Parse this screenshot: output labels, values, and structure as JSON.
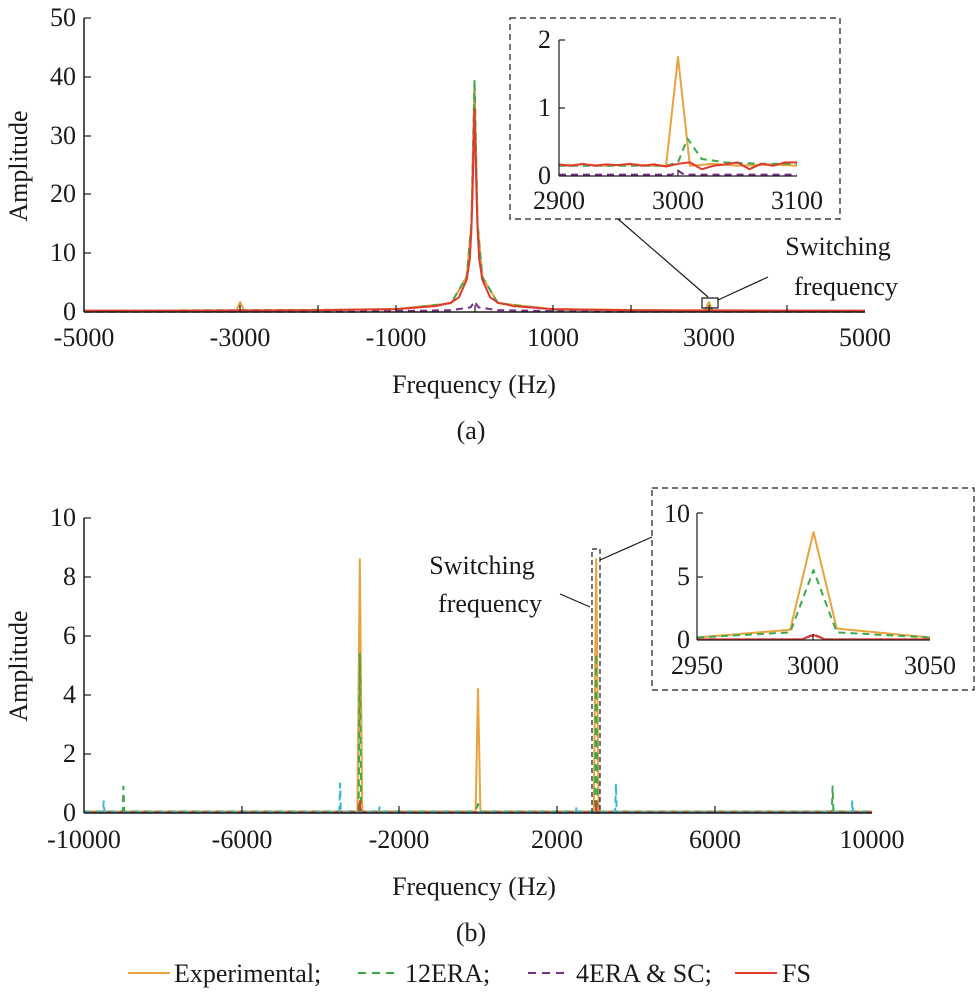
{
  "chart_data": [
    {
      "type": "line",
      "caption": "(a)",
      "xlabel": "Frequency (Hz)",
      "ylabel": "Amplitude",
      "xlim": [
        -5000,
        5000
      ],
      "ylim": [
        0,
        50
      ],
      "xticks": [
        "-5000",
        "-3000",
        "-1000",
        "1000",
        "3000",
        "5000"
      ],
      "yticks": [
        "0",
        "10",
        "20",
        "30",
        "40",
        "50"
      ],
      "grid": false,
      "annotation": "Switching frequency",
      "series": [
        {
          "name": "Experimental",
          "color": "#E8A33D",
          "dash": "solid",
          "points": [
            [
              -5000,
              0.2
            ],
            [
              -3050,
              0.2
            ],
            [
              -3000,
              1.7
            ],
            [
              -2950,
              0.2
            ],
            [
              -1000,
              0.5
            ],
            [
              -300,
              1.5
            ],
            [
              -100,
              6
            ],
            [
              -40,
              15
            ],
            [
              -15,
              30
            ],
            [
              0,
              39
            ],
            [
              15,
              30
            ],
            [
              40,
              15
            ],
            [
              100,
              6
            ],
            [
              300,
              1.5
            ],
            [
              1000,
              0.5
            ],
            [
              2950,
              0.2
            ],
            [
              3000,
              1.7
            ],
            [
              3050,
              0.2
            ],
            [
              5000,
              0.2
            ]
          ]
        },
        {
          "name": "12ERA",
          "color": "#3DAA4A",
          "dash": "dashed",
          "points": [
            [
              -5000,
              0.2
            ],
            [
              -1000,
              0.4
            ],
            [
              -300,
              1.5
            ],
            [
              -100,
              6
            ],
            [
              -40,
              15
            ],
            [
              -15,
              30
            ],
            [
              0,
              39.5
            ],
            [
              15,
              30
            ],
            [
              40,
              15
            ],
            [
              100,
              6
            ],
            [
              300,
              1.5
            ],
            [
              1000,
              0.4
            ],
            [
              2990,
              0.2
            ],
            [
              3010,
              0.55
            ],
            [
              3040,
              0.2
            ],
            [
              5000,
              0.2
            ]
          ]
        },
        {
          "name": "4ERA & SC",
          "color": "#7B2D8E",
          "dash": "dashed",
          "points": [
            [
              -5000,
              0.05
            ],
            [
              -1500,
              0.05
            ],
            [
              -300,
              0.3
            ],
            [
              -50,
              0.8
            ],
            [
              0,
              1.8
            ],
            [
              50,
              0.8
            ],
            [
              300,
              0.3
            ],
            [
              1500,
              0.05
            ],
            [
              5000,
              0.05
            ]
          ]
        },
        {
          "name": "FS",
          "color": "#E03A2F",
          "dash": "solid",
          "points": [
            [
              -5000,
              0.2
            ],
            [
              -2000,
              0.3
            ],
            [
              -1000,
              0.5
            ],
            [
              -500,
              1.0
            ],
            [
              -300,
              1.6
            ],
            [
              -200,
              2.5
            ],
            [
              -100,
              5.5
            ],
            [
              -60,
              9
            ],
            [
              -40,
              14
            ],
            [
              -25,
              20
            ],
            [
              -12,
              28
            ],
            [
              0,
              34.5
            ],
            [
              12,
              28
            ],
            [
              25,
              20
            ],
            [
              40,
              14
            ],
            [
              60,
              9
            ],
            [
              100,
              5.5
            ],
            [
              200,
              2.5
            ],
            [
              300,
              1.6
            ],
            [
              500,
              1.0
            ],
            [
              1000,
              0.5
            ],
            [
              2000,
              0.3
            ],
            [
              5000,
              0.2
            ]
          ]
        }
      ],
      "inset": {
        "xlim": [
          2900,
          3100
        ],
        "ylim": [
          0,
          2
        ],
        "xticks": [
          "2900",
          "3000",
          "3100"
        ],
        "yticks": [
          "0",
          "1",
          "2"
        ],
        "series": [
          {
            "name": "Experimental",
            "color": "#E8A33D",
            "dash": "solid",
            "points": [
              [
                2900,
                0.15
              ],
              [
                2920,
                0.17
              ],
              [
                2940,
                0.15
              ],
              [
                2960,
                0.17
              ],
              [
                2980,
                0.15
              ],
              [
                2990,
                0.15
              ],
              [
                3000,
                1.75
              ],
              [
                3010,
                0.15
              ],
              [
                3030,
                0.18
              ],
              [
                3050,
                0.15
              ],
              [
                3080,
                0.17
              ],
              [
                3100,
                0.15
              ]
            ]
          },
          {
            "name": "12ERA",
            "color": "#3DAA4A",
            "dash": "dashed",
            "points": [
              [
                2900,
                0.15
              ],
              [
                2950,
                0.15
              ],
              [
                2990,
                0.15
              ],
              [
                3000,
                0.2
              ],
              [
                3008,
                0.55
              ],
              [
                3020,
                0.25
              ],
              [
                3040,
                0.2
              ],
              [
                3070,
                0.18
              ],
              [
                3100,
                0.18
              ]
            ]
          },
          {
            "name": "4ERA & SC",
            "color": "#7B2D8E",
            "dash": "dashed",
            "points": [
              [
                2900,
                0.02
              ],
              [
                2995,
                0.02
              ],
              [
                3000,
                0.08
              ],
              [
                3005,
                0.02
              ],
              [
                3100,
                0.02
              ]
            ]
          },
          {
            "name": "FS",
            "color": "#E03A2F",
            "dash": "solid",
            "points": [
              [
                2900,
                0.17
              ],
              [
                2910,
                0.15
              ],
              [
                2920,
                0.18
              ],
              [
                2930,
                0.15
              ],
              [
                2940,
                0.17
              ],
              [
                2950,
                0.16
              ],
              [
                2960,
                0.18
              ],
              [
                2970,
                0.15
              ],
              [
                2980,
                0.17
              ],
              [
                2990,
                0.14
              ],
              [
                3000,
                0.18
              ],
              [
                3010,
                0.2
              ],
              [
                3020,
                0.1
              ],
              [
                3030,
                0.15
              ],
              [
                3040,
                0.17
              ],
              [
                3050,
                0.2
              ],
              [
                3060,
                0.1
              ],
              [
                3070,
                0.18
              ],
              [
                3080,
                0.15
              ],
              [
                3090,
                0.2
              ],
              [
                3100,
                0.2
              ]
            ]
          }
        ]
      }
    },
    {
      "type": "line",
      "caption": "(b)",
      "xlabel": "Frequency (Hz)",
      "ylabel": "Amplitude",
      "xlim": [
        -10000,
        10000
      ],
      "ylim": [
        0,
        10
      ],
      "xticks": [
        "-10000",
        "-6000",
        "-2000",
        "2000",
        "6000",
        "10000"
      ],
      "yticks": [
        "0",
        "2",
        "4",
        "6",
        "8",
        "10"
      ],
      "grid": false,
      "annotation": "Switching frequency",
      "series": [
        {
          "name": "Experimental",
          "color": "#E8A33D",
          "dash": "solid",
          "points": [
            [
              -10000,
              0.05
            ],
            [
              -3060,
              0.05
            ],
            [
              -3000,
              8.6
            ],
            [
              -2940,
              0.05
            ],
            [
              -60,
              0.05
            ],
            [
              0,
              4.2
            ],
            [
              60,
              0.05
            ],
            [
              2940,
              0.05
            ],
            [
              3000,
              8.6
            ],
            [
              3060,
              0.05
            ],
            [
              10000,
              0.05
            ]
          ]
        },
        {
          "name": "12ERA",
          "color": "#3DAA4A",
          "dash": "dashed",
          "points": [
            [
              -10000,
              0.05
            ],
            [
              -9020,
              0.05
            ],
            [
              -9000,
              0.9
            ],
            [
              -8980,
              0.05
            ],
            [
              -3030,
              0.05
            ],
            [
              -3000,
              5.4
            ],
            [
              -2970,
              0.05
            ],
            [
              -60,
              0.05
            ],
            [
              0,
              0.3
            ],
            [
              60,
              0.05
            ],
            [
              2970,
              0.05
            ],
            [
              3000,
              5.4
            ],
            [
              3030,
              0.05
            ],
            [
              8980,
              0.05
            ],
            [
              9000,
              0.9
            ],
            [
              9020,
              0.05
            ],
            [
              10000,
              0.05
            ]
          ]
        },
        {
          "name": "4ERA & SC",
          "color": "#7B2D8E",
          "dash": "dashed",
          "points": [
            [
              -10000,
              0.02
            ],
            [
              -3010,
              0.02
            ],
            [
              -3000,
              0.4
            ],
            [
              -2990,
              0.02
            ],
            [
              2990,
              0.02
            ],
            [
              3000,
              0.4
            ],
            [
              3010,
              0.02
            ],
            [
              10000,
              0.02
            ]
          ]
        },
        {
          "name": "FS",
          "color": "#E03A2F",
          "dash": "solid",
          "points": [
            [
              -10000,
              0.02
            ],
            [
              -3010,
              0.02
            ],
            [
              -3000,
              0.4
            ],
            [
              -2990,
              0.02
            ],
            [
              2990,
              0.02
            ],
            [
              3000,
              0.4
            ],
            [
              3010,
              0.02
            ],
            [
              10000,
              0.02
            ]
          ]
        },
        {
          "name": "",
          "color": "#3BB5E0",
          "dash": "dashed",
          "points": [
            [
              -10000,
              0.02
            ],
            [
              -9520,
              0.02
            ],
            [
              -9500,
              0.4
            ],
            [
              -9480,
              0.02
            ],
            [
              -3520,
              0.02
            ],
            [
              -3500,
              1.0
            ],
            [
              -3480,
              0.02
            ],
            [
              -2520,
              0.02
            ],
            [
              -2500,
              0.2
            ],
            [
              -2480,
              0.02
            ],
            [
              2480,
              0.02
            ],
            [
              2500,
              0.2
            ],
            [
              2520,
              0.02
            ],
            [
              3480,
              0.02
            ],
            [
              3500,
              1.0
            ],
            [
              3520,
              0.02
            ],
            [
              9480,
              0.02
            ],
            [
              9500,
              0.4
            ],
            [
              9520,
              0.02
            ],
            [
              10000,
              0.02
            ]
          ]
        }
      ],
      "inset": {
        "xlim": [
          2950,
          3050
        ],
        "ylim": [
          0,
          10
        ],
        "xticks": [
          "2950",
          "3000",
          "3050"
        ],
        "yticks": [
          "0",
          "5",
          "10"
        ],
        "series": [
          {
            "name": "Experimental",
            "color": "#E8A33D",
            "dash": "solid",
            "points": [
              [
                2950,
                0.2
              ],
              [
                2990,
                0.8
              ],
              [
                3000,
                8.5
              ],
              [
                3010,
                0.9
              ],
              [
                3050,
                0.2
              ]
            ]
          },
          {
            "name": "12ERA",
            "color": "#3DAA4A",
            "dash": "dashed",
            "points": [
              [
                2950,
                0.2
              ],
              [
                2990,
                0.6
              ],
              [
                3000,
                5.5
              ],
              [
                3010,
                0.6
              ],
              [
                3050,
                0.2
              ]
            ]
          },
          {
            "name": "4ERA & SC",
            "color": "#7B2D8E",
            "dash": "dashed",
            "points": [
              [
                2950,
                0.05
              ],
              [
                2995,
                0.05
              ],
              [
                3000,
                0.45
              ],
              [
                3005,
                0.05
              ],
              [
                3050,
                0.05
              ]
            ]
          },
          {
            "name": "FS",
            "color": "#E03A2F",
            "dash": "solid",
            "points": [
              [
                2950,
                0.05
              ],
              [
                2995,
                0.05
              ],
              [
                3000,
                0.4
              ],
              [
                3005,
                0.05
              ],
              [
                3050,
                0.05
              ]
            ]
          }
        ]
      }
    }
  ],
  "legend": {
    "placement": "bottom",
    "entries": [
      {
        "label": "Experimental;",
        "color": "#E8A33D",
        "dash": "solid"
      },
      {
        "label": "12ERA;",
        "color": "#3DAA4A",
        "dash": "dashed"
      },
      {
        "label": "4ERA & SC;",
        "color": "#7B2D8E",
        "dash": "dashed"
      },
      {
        "label": "FS",
        "color": "#E03A2F",
        "dash": "solid"
      }
    ]
  }
}
